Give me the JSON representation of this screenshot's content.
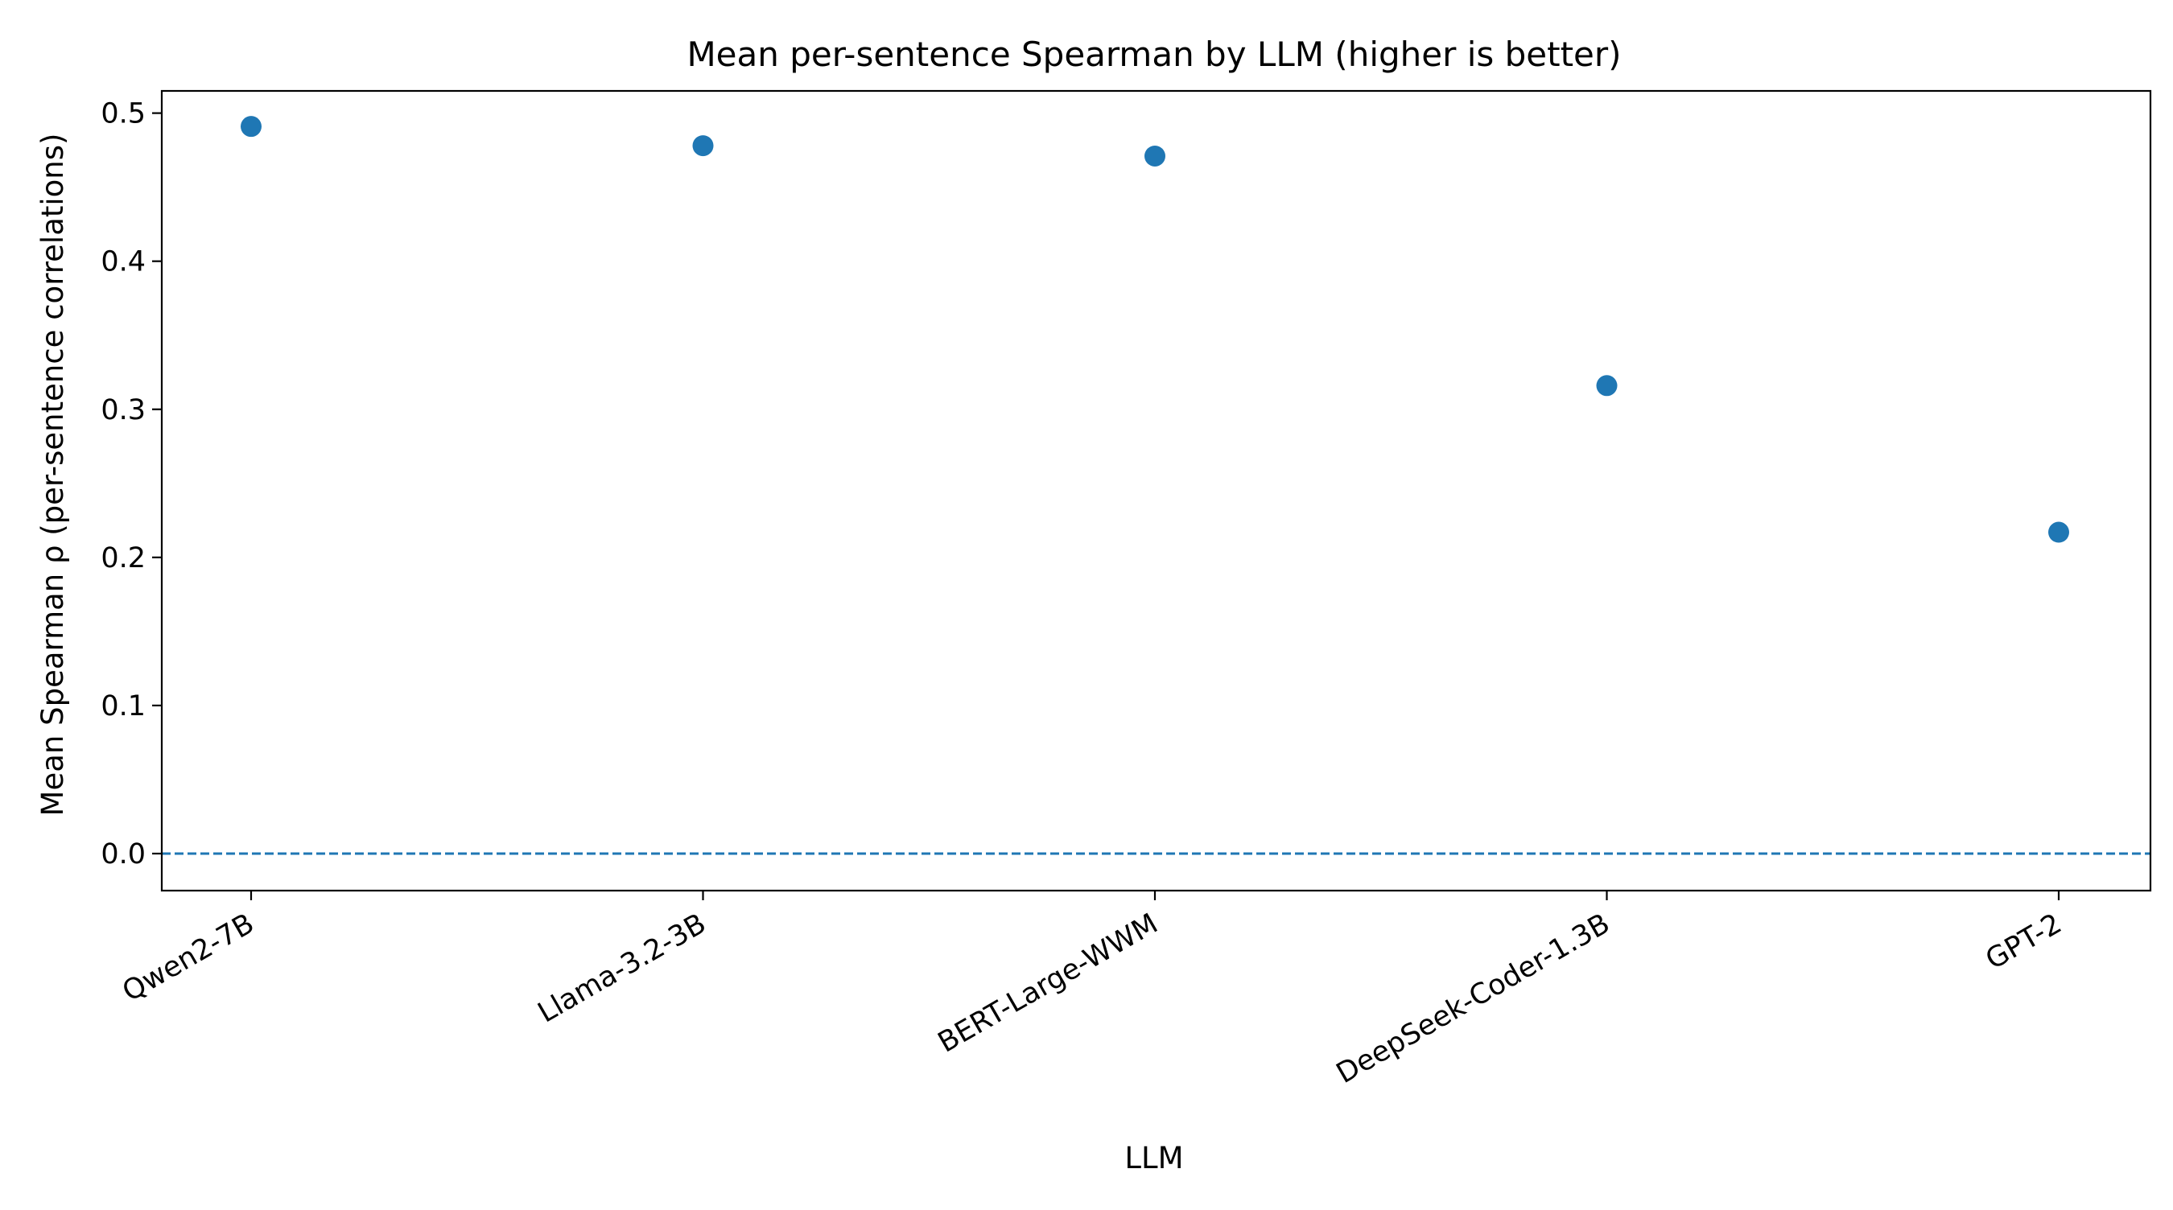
{
  "chart_data": {
    "type": "scatter",
    "title": "Mean per-sentence Spearman by LLM (higher is better)",
    "xlabel": "LLM",
    "ylabel": "Mean Spearman ρ (per-sentence correlations)",
    "categories": [
      "Qwen2-7B",
      "Llama-3.2-3B",
      "BERT-Large-WWM",
      "DeepSeek-Coder-1.3B",
      "GPT-2"
    ],
    "series": [
      {
        "values": [
          0.491,
          0.478,
          0.471,
          0.316,
          0.217
        ]
      }
    ],
    "ylim": [
      -0.025,
      0.515
    ],
    "yticks": [
      0.0,
      0.1,
      0.2,
      0.3,
      0.4,
      0.5
    ],
    "ytick_labels": [
      "0.0",
      "0.1",
      "0.2",
      "0.3",
      "0.4",
      "0.5"
    ],
    "reference_line": {
      "y": 0.0,
      "style": "dashed"
    },
    "grid": false,
    "legend": "none",
    "colors": {
      "marker": "#1f77b4",
      "reference_line": "#1f77b4",
      "axes": "#000000"
    }
  }
}
